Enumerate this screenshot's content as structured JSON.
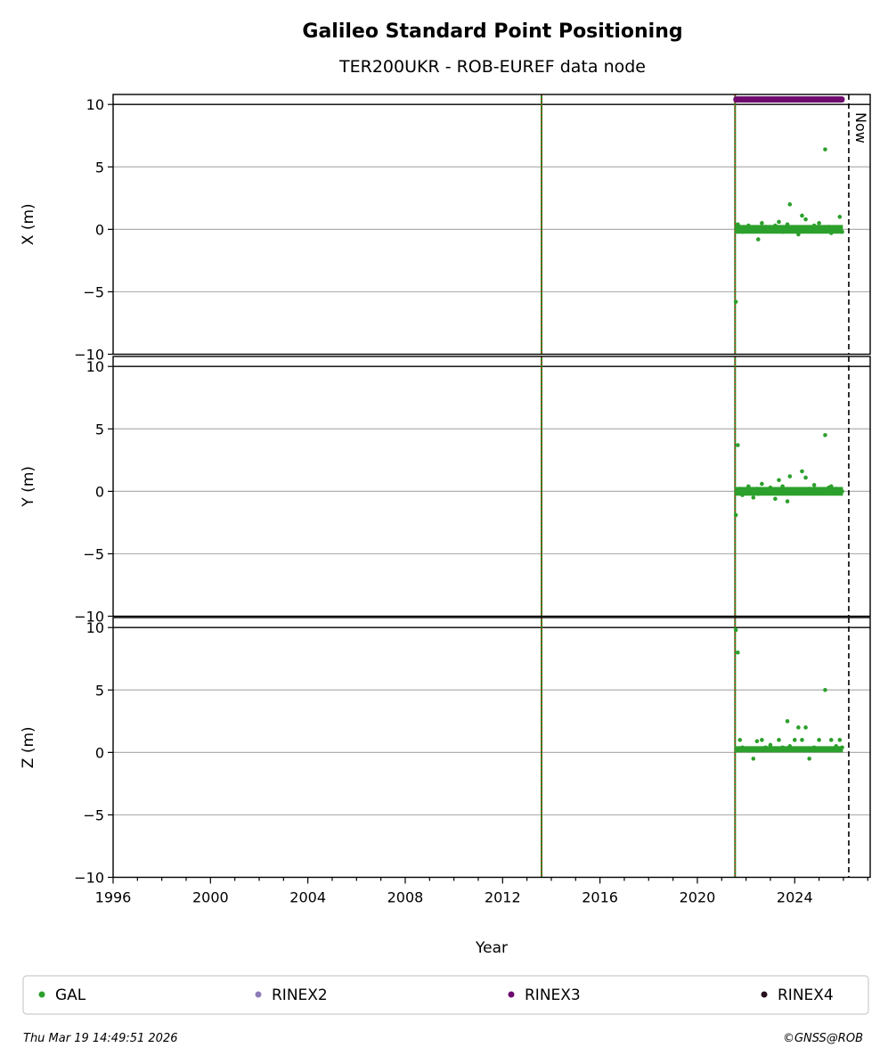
{
  "chart_data": {
    "type": "scatter",
    "title": "Galileo Standard Point Positioning",
    "subtitle": "TER200UKR - ROB-EUREF data node",
    "xlabel": "Year",
    "xlim": [
      1996,
      2027.1
    ],
    "x_ticks": [
      "1996",
      "2000",
      "2004",
      "2008",
      "2012",
      "2016",
      "2020",
      "2024"
    ],
    "ylim": [
      -10,
      10.8
    ],
    "y_ticks": [
      "−10",
      "−5",
      "0",
      "5",
      "10"
    ],
    "grid": "y",
    "panels": [
      {
        "ylabel": "X (m)"
      },
      {
        "ylabel": "Y (m)"
      },
      {
        "ylabel": "Z (m)"
      }
    ],
    "event_lines": [
      2013.6,
      2021.55
    ],
    "now_line": {
      "x": 2026.22,
      "label": "Now"
    },
    "rinex3_availability": {
      "start": 2021.55,
      "end": 2025.98,
      "y": 10.4
    },
    "series": [
      {
        "name": "GAL",
        "color": "#2ca02c",
        "x": [
          2021.58,
          2021.66,
          2021.75,
          2021.85,
          2022.0,
          2022.1,
          2022.3,
          2022.45,
          2022.5,
          2022.65,
          2022.8,
          2023.0,
          2023.2,
          2023.35,
          2023.5,
          2023.7,
          2023.8,
          2024.0,
          2024.15,
          2024.3,
          2024.45,
          2024.6,
          2024.8,
          2025.0,
          2025.25,
          2025.4,
          2025.5,
          2025.7,
          2025.85,
          2025.95
        ],
        "x_m": [
          -5.8,
          0.4,
          0.2,
          -0.2,
          0.0,
          0.3,
          0.1,
          -0.1,
          -0.8,
          0.5,
          0.2,
          0.0,
          0.3,
          0.6,
          -0.2,
          0.4,
          2.0,
          0.1,
          -0.4,
          1.1,
          0.8,
          0.0,
          0.3,
          0.5,
          6.4,
          0.2,
          -0.3,
          0.1,
          1.0,
          -0.2
        ],
        "y_m": [
          -1.9,
          3.7,
          0.2,
          -0.3,
          0.1,
          0.4,
          -0.5,
          0.2,
          -0.2,
          0.6,
          0.0,
          0.3,
          -0.6,
          0.9,
          0.4,
          -0.8,
          1.2,
          0.1,
          0.0,
          1.6,
          1.1,
          0.2,
          0.5,
          0.0,
          4.5,
          0.3,
          0.4,
          0.2,
          0.1,
          0.0
        ],
        "z_m": [
          9.8,
          8.0,
          1.0,
          0.4,
          0.3,
          0.2,
          -0.5,
          0.9,
          0.3,
          1.0,
          0.4,
          0.6,
          0.2,
          1.0,
          0.4,
          2.5,
          0.5,
          1.0,
          2.0,
          1.0,
          2.0,
          -0.5,
          0.4,
          1.0,
          5.0,
          0.3,
          1.0,
          0.5,
          1.0,
          0.4
        ]
      },
      {
        "name": "RINEX2",
        "color": "#8c7bb8"
      },
      {
        "name": "RINEX3",
        "color": "#6e0a6e"
      },
      {
        "name": "RINEX4",
        "color": "#2a0f1e"
      }
    ]
  },
  "footer": {
    "timestamp": "Thu Mar 19 14:49:51 2026",
    "credit": "©GNSS@ROB"
  }
}
